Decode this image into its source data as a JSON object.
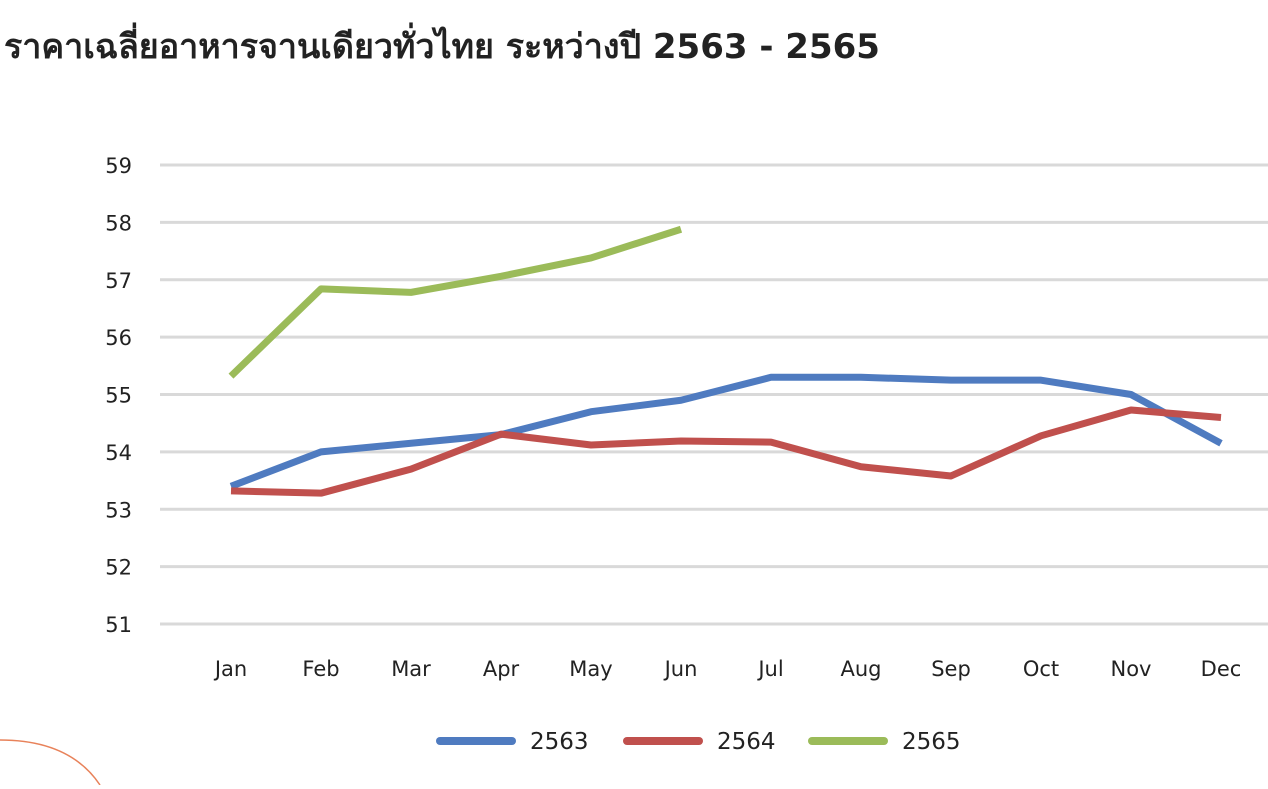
{
  "chart_data": {
    "type": "line",
    "title": "ราคาเฉลี่ยอาหารจานเดียวทั่วไทย ระหว่างปี 2563 - 2565",
    "categories": [
      "Jan",
      "Feb",
      "Mar",
      "Apr",
      "May",
      "Jun",
      "Jul",
      "Aug",
      "Sep",
      "Oct",
      "Nov",
      "Dec"
    ],
    "series": [
      {
        "name": "2563",
        "color": "#4f7bc0",
        "values": [
          53.4,
          54.0,
          54.15,
          54.3,
          54.7,
          54.9,
          55.3,
          55.3,
          55.25,
          55.25,
          55.0,
          54.15
        ]
      },
      {
        "name": "2564",
        "color": "#c0504d",
        "values": [
          53.32,
          53.28,
          53.7,
          54.31,
          54.12,
          54.19,
          54.17,
          53.74,
          53.58,
          54.28,
          54.73,
          54.6
        ]
      },
      {
        "name": "2565",
        "color": "#9bbb59",
        "values": [
          55.32,
          56.84,
          56.78,
          57.06,
          57.38,
          57.88,
          null,
          null,
          null,
          null,
          null,
          null
        ]
      }
    ],
    "ylim": [
      51,
      59
    ],
    "yticks": [
      51,
      52,
      53,
      54,
      55,
      56,
      57,
      58,
      59
    ],
    "grid": true,
    "legend": "bottom"
  }
}
